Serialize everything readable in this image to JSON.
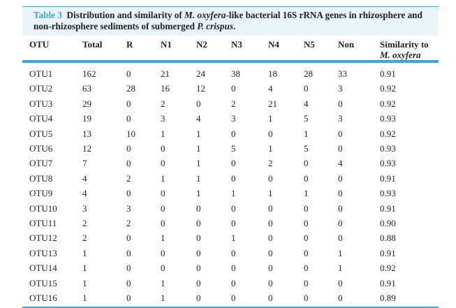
{
  "caption": {
    "label": "Table 3",
    "parts": [
      "Distribution and similarity of ",
      "M. oxyfera",
      "-like bacterial 16S rRNA genes in rhizosphere and non-rhizosphere sediments of submerged ",
      "P. crispus",
      "."
    ]
  },
  "columns": [
    "OTU",
    "Total",
    "R",
    "N1",
    "N2",
    "N3",
    "N4",
    "N5",
    "Non",
    "Similarity to",
    "M. oxyfera"
  ],
  "rows": [
    [
      "OTU1",
      "162",
      "0",
      "21",
      "24",
      "38",
      "18",
      "28",
      "33",
      "0.91"
    ],
    [
      "OTU2",
      "63",
      "28",
      "16",
      "12",
      "0",
      "4",
      "0",
      "3",
      "0.92"
    ],
    [
      "OTU3",
      "29",
      "0",
      "2",
      "0",
      "2",
      "21",
      "4",
      "0",
      "0.92"
    ],
    [
      "OTU4",
      "19",
      "0",
      "3",
      "4",
      "3",
      "1",
      "5",
      "3",
      "0.93"
    ],
    [
      "OTU5",
      "13",
      "10",
      "1",
      "1",
      "0",
      "0",
      "1",
      "0",
      "0.92"
    ],
    [
      "OTU6",
      "12",
      "0",
      "0",
      "1",
      "5",
      "1",
      "5",
      "0",
      "0.93"
    ],
    [
      "OTU7",
      "7",
      "0",
      "0",
      "1",
      "0",
      "2",
      "0",
      "4",
      "0.93"
    ],
    [
      "OTU8",
      "4",
      "2",
      "1",
      "1",
      "0",
      "0",
      "0",
      "0",
      "0.91"
    ],
    [
      "OTU9",
      "4",
      "0",
      "0",
      "1",
      "1",
      "1",
      "1",
      "0",
      "0.93"
    ],
    [
      "OTU10",
      "3",
      "3",
      "0",
      "0",
      "0",
      "0",
      "0",
      "0",
      "0.91"
    ],
    [
      "OTU11",
      "2",
      "2",
      "0",
      "0",
      "0",
      "0",
      "0",
      "0",
      "0.90"
    ],
    [
      "OTU12",
      "2",
      "0",
      "1",
      "0",
      "1",
      "0",
      "0",
      "0",
      "0.88"
    ],
    [
      "OTU13",
      "1",
      "0",
      "0",
      "0",
      "0",
      "0",
      "0",
      "1",
      "0.91"
    ],
    [
      "OTU14",
      "1",
      "0",
      "0",
      "0",
      "0",
      "0",
      "0",
      "1",
      "0.92"
    ],
    [
      "OTU15",
      "1",
      "0",
      "1",
      "0",
      "0",
      "0",
      "0",
      "0",
      "0.91"
    ],
    [
      "OTU16",
      "1",
      "0",
      "1",
      "0",
      "0",
      "0",
      "0",
      "0",
      "0.89"
    ]
  ],
  "colors": {
    "accent": "#3aa6d8",
    "caption_bg": "#e9f4fb"
  }
}
